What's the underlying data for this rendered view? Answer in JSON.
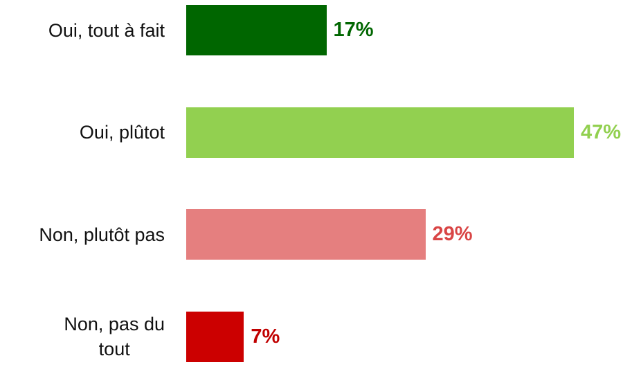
{
  "chart_data": {
    "type": "hbar",
    "categories": [
      "Oui, tout à fait",
      "Oui, plûtot",
      "Non, plutôt pas",
      "Non, pas du\ntout"
    ],
    "values": [
      17,
      47,
      29,
      7
    ],
    "value_labels": [
      "17%",
      "47%",
      "29%",
      "7%"
    ],
    "colors": [
      "#006600",
      "#92d050",
      "#e57f7f",
      "#cc0000"
    ],
    "label_colors": [
      "#006600",
      "#92d050",
      "#d94545",
      "#c00000"
    ]
  }
}
